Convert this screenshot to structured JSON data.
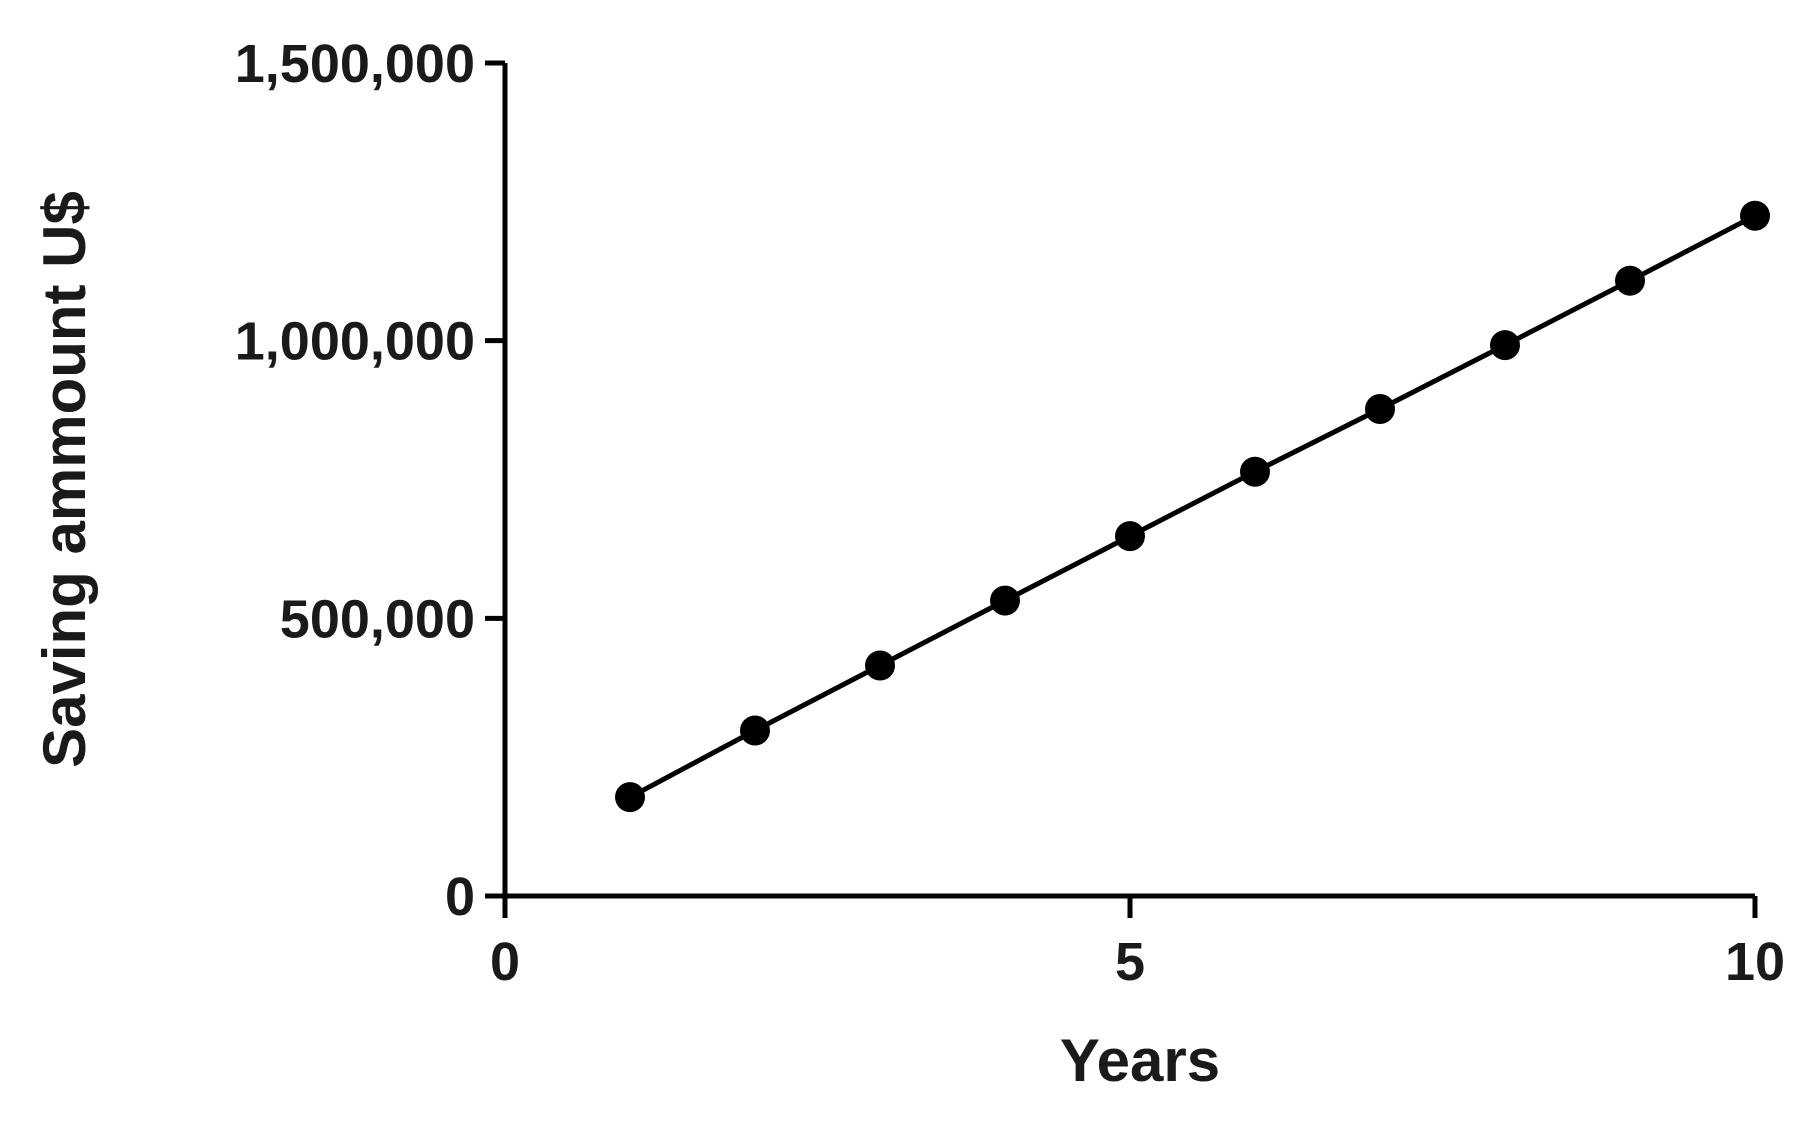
{
  "chart_data": {
    "type": "line",
    "title": "",
    "xlabel": "Years",
    "ylabel": "Saving ammount U$",
    "xlim": [
      0,
      10
    ],
    "ylim": [
      0,
      1500000
    ],
    "x_ticks": [
      0,
      5,
      10
    ],
    "x_tick_labels": [
      "0",
      "5",
      "10"
    ],
    "y_ticks": [
      0,
      500000,
      1000000,
      1500000
    ],
    "y_tick_labels": [
      "0",
      "500,000",
      "1,000,000",
      "1,500,000"
    ],
    "grid": false,
    "legend": "none",
    "series": [
      {
        "x": [
          1,
          2,
          3,
          4,
          5,
          6,
          7,
          8,
          9,
          10
        ],
        "values": [
          178000,
          298000,
          415000,
          532000,
          648000,
          764000,
          877000,
          992000,
          1108000,
          1225000
        ],
        "color": "#000000"
      }
    ]
  }
}
